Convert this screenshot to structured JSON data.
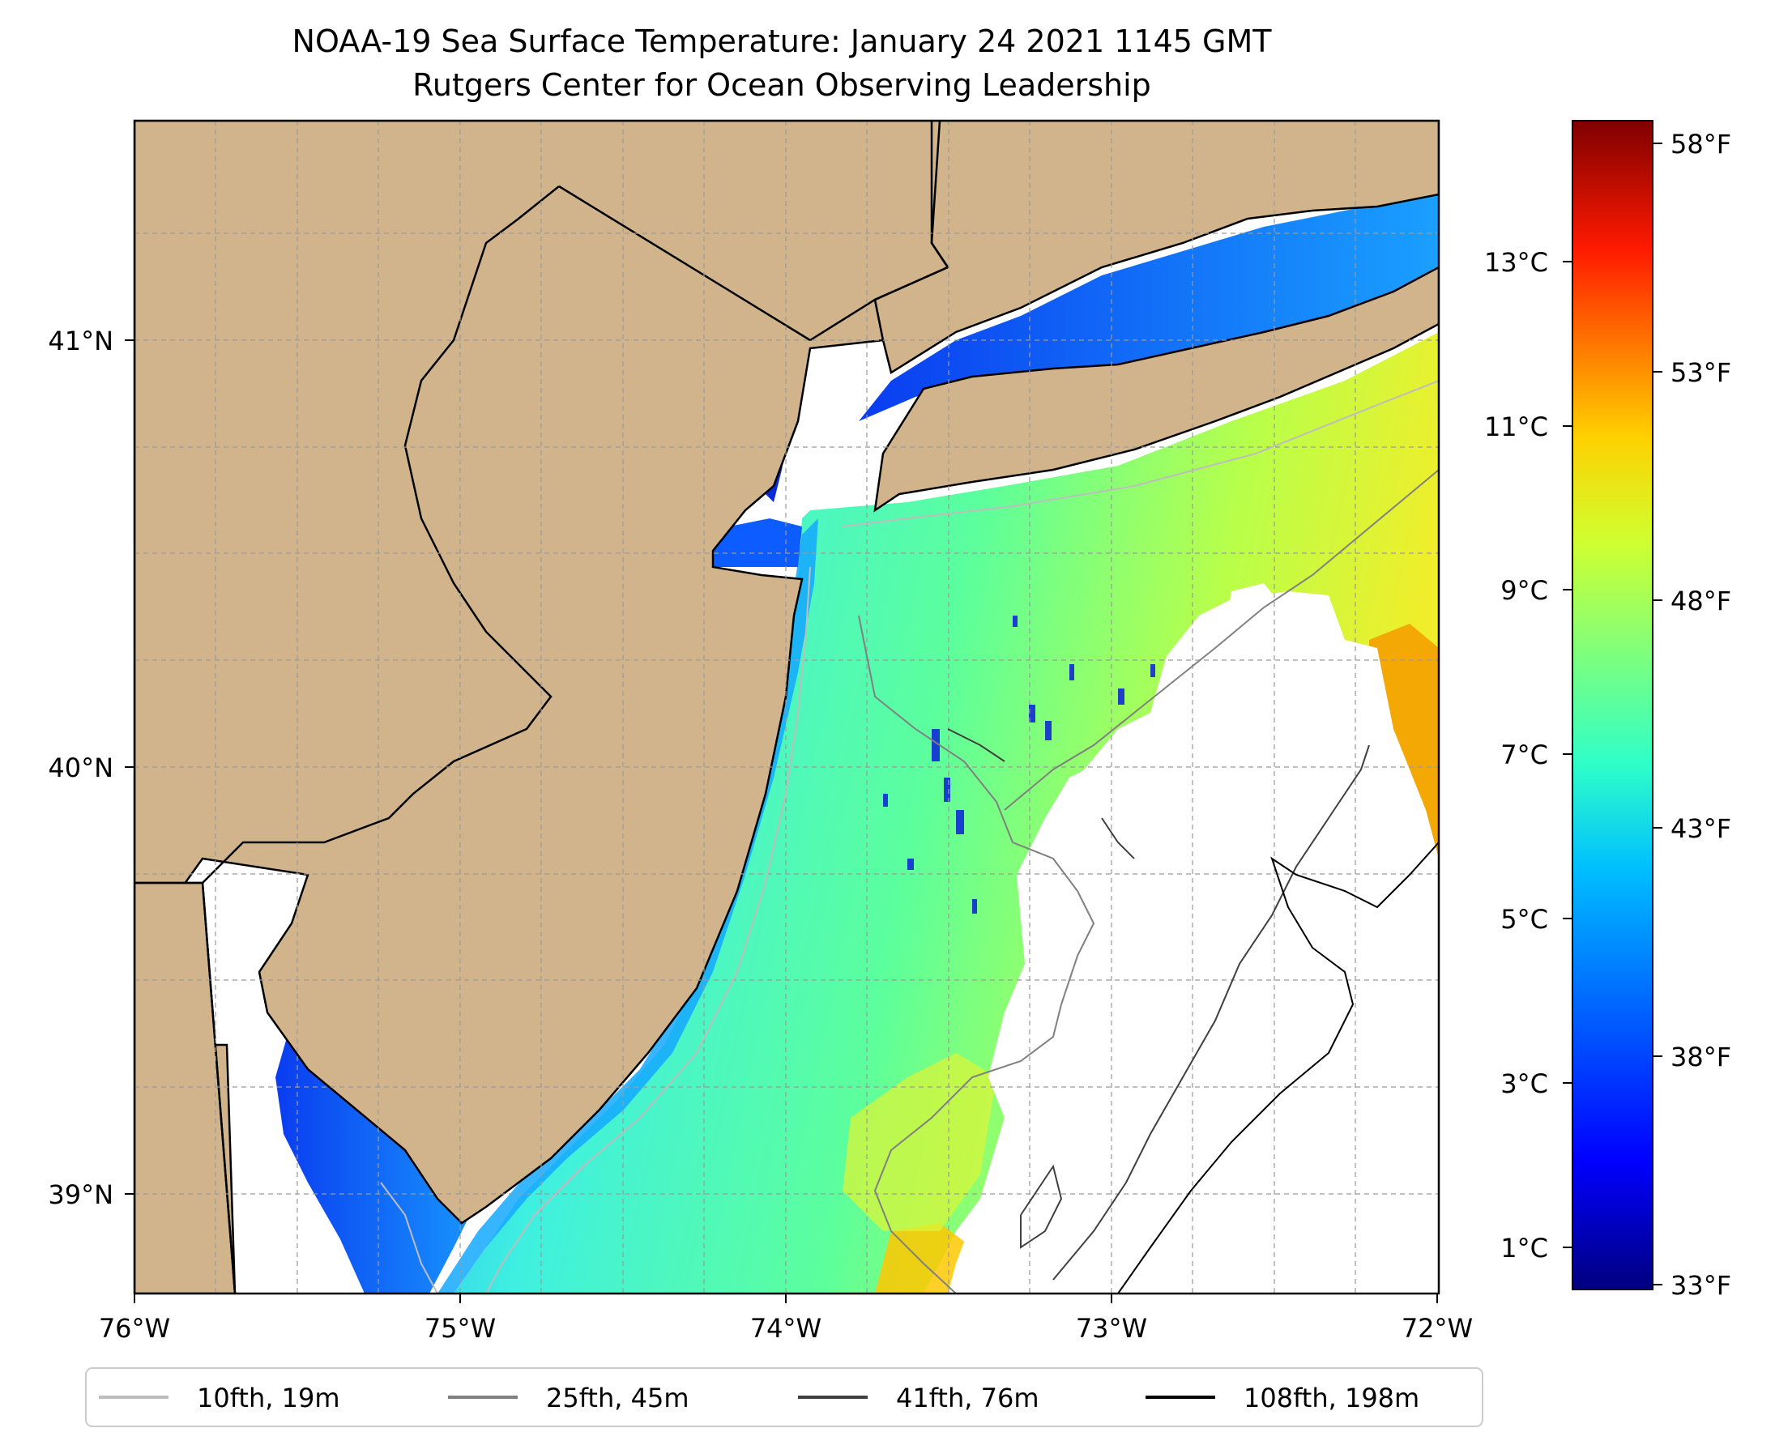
{
  "title": {
    "line1": "NOAA-19 Sea Surface Temperature: January 24 2021 1145 GMT",
    "line2": "Rutgers Center for Ocean Observing Leadership"
  },
  "map": {
    "lon_range": [
      -76,
      -72
    ],
    "lat_range": [
      38.72,
      41.52
    ],
    "x_ticks": [
      {
        "lon": -76,
        "label": "76°W"
      },
      {
        "lon": -75,
        "label": "75°W"
      },
      {
        "lon": -74,
        "label": "74°W"
      },
      {
        "lon": -73,
        "label": "73°W"
      },
      {
        "lon": -72,
        "label": "72°W"
      }
    ],
    "y_ticks": [
      {
        "lat": 41,
        "label": "41°N"
      },
      {
        "lat": 40,
        "label": "40°N"
      },
      {
        "lat": 39,
        "label": "39°N"
      }
    ],
    "gridlines": true,
    "land_color": "#D2B48C",
    "cloud_color": "#ffffff"
  },
  "colorbar": {
    "colormap": "jet",
    "range_c": [
      0.55,
      14.8
    ],
    "celsius_ticks": [
      {
        "value": 1,
        "label": "1°C"
      },
      {
        "value": 3,
        "label": "3°C"
      },
      {
        "value": 5,
        "label": "5°C"
      },
      {
        "value": 7,
        "label": "7°C"
      },
      {
        "value": 9,
        "label": "9°C"
      },
      {
        "value": 11,
        "label": "11°C"
      },
      {
        "value": 13,
        "label": "13°C"
      }
    ],
    "fahrenheit_ticks": [
      {
        "value": 33,
        "label": "33°F"
      },
      {
        "value": 38,
        "label": "38°F"
      },
      {
        "value": 43,
        "label": "43°F"
      },
      {
        "value": 48,
        "label": "48°F"
      },
      {
        "value": 53,
        "label": "53°F"
      },
      {
        "value": 58,
        "label": "58°F"
      }
    ]
  },
  "legend": {
    "placement": "bottom",
    "items": [
      {
        "label": "10fth, 19m",
        "color": "#bdbdbd"
      },
      {
        "label": "25fth, 45m",
        "color": "#808080"
      },
      {
        "label": "41fth, 76m",
        "color": "#404040"
      },
      {
        "label": "108fth, 198m",
        "color": "#000000"
      }
    ]
  }
}
